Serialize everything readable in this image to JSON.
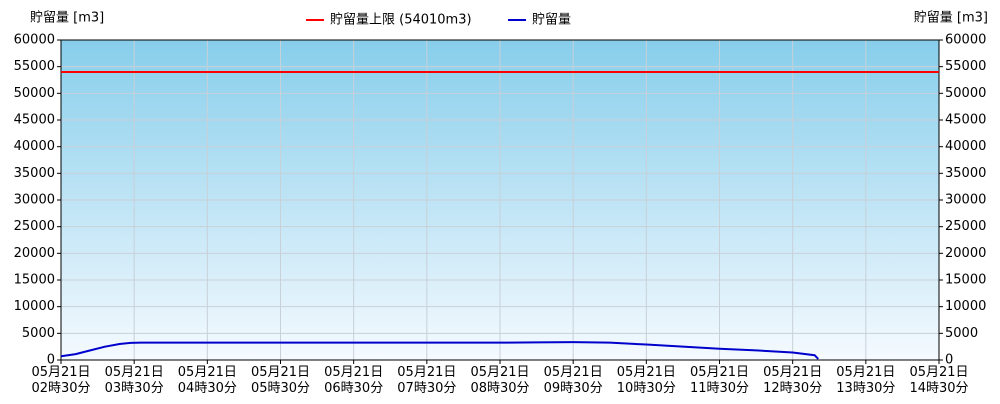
{
  "chart_data": {
    "type": "line",
    "y_label": "貯留量 [m3]",
    "y2_label": "貯留量 [m3]",
    "xlim": [
      2.5,
      14.5
    ],
    "xticks": [
      {
        "value": 2.5,
        "label": "05月21日 02時30分"
      },
      {
        "value": 3.5,
        "label": "05月21日 03時30分"
      },
      {
        "value": 4.5,
        "label": "05月21日 04時30分"
      },
      {
        "value": 5.5,
        "label": "05月21日 05時30分"
      },
      {
        "value": 6.5,
        "label": "05月21日 06時30分"
      },
      {
        "value": 7.5,
        "label": "05月21日 07時30分"
      },
      {
        "value": 8.5,
        "label": "05月21日 08時30分"
      },
      {
        "value": 9.5,
        "label": "05月21日 09時30分"
      },
      {
        "value": 10.5,
        "label": "05月21日 10時30分"
      },
      {
        "value": 11.5,
        "label": "05月21日 11時30分"
      },
      {
        "value": 12.5,
        "label": "05月21日 12時30分"
      },
      {
        "value": 13.5,
        "label": "05月21日 13時30分"
      },
      {
        "value": 14.5,
        "label": "05月21日 14時30分"
      }
    ],
    "ylim": [
      0,
      60000
    ],
    "yticks": [
      0,
      5000,
      10000,
      15000,
      20000,
      25000,
      30000,
      35000,
      40000,
      45000,
      50000,
      55000,
      60000
    ],
    "y2lim": [
      0,
      60000
    ],
    "y2ticks": [
      0,
      5000,
      10000,
      15000,
      20000,
      25000,
      30000,
      35000,
      40000,
      45000,
      50000,
      55000,
      60000
    ],
    "grid": true,
    "legend": "top",
    "limit": {
      "name": "貯留量上限 (54010m3)",
      "value": 54010,
      "color": "#ff0000"
    },
    "series": [
      {
        "name": "貯留量",
        "color": "#0000cc",
        "x": [
          2.5,
          2.7,
          2.9,
          3.1,
          3.3,
          3.45,
          3.6,
          4.5,
          5.5,
          6.5,
          7.5,
          8.5,
          9.0,
          9.5,
          10.0,
          10.5,
          11.0,
          11.5,
          12.0,
          12.5,
          12.8,
          12.85
        ],
        "values": [
          700,
          1100,
          1800,
          2500,
          3000,
          3200,
          3250,
          3250,
          3250,
          3250,
          3250,
          3250,
          3300,
          3350,
          3250,
          2900,
          2500,
          2100,
          1800,
          1400,
          900,
          200
        ]
      }
    ]
  }
}
